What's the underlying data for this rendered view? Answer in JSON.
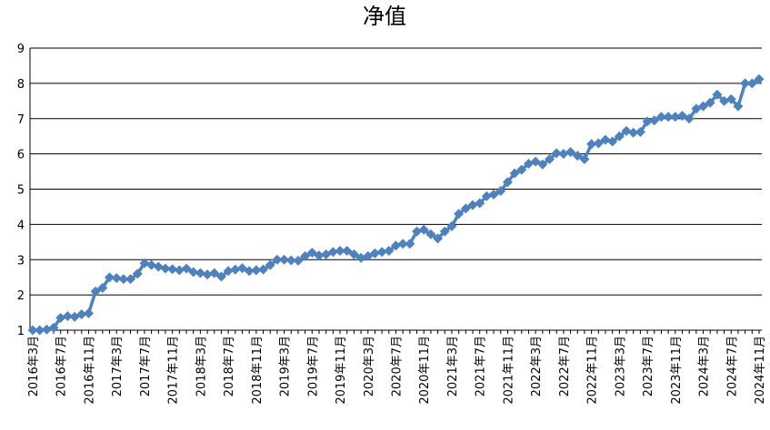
{
  "chart_data": {
    "type": "line",
    "title": "净值",
    "categories": [
      "2016年3月",
      null,
      null,
      null,
      "2016年7月",
      null,
      null,
      null,
      "2016年11月",
      null,
      null,
      null,
      "2017年3月",
      null,
      null,
      null,
      "2017年7月",
      null,
      null,
      null,
      "2017年11月",
      null,
      null,
      null,
      "2018年3月",
      null,
      null,
      null,
      "2018年7月",
      null,
      null,
      null,
      "2018年11月",
      null,
      null,
      null,
      "2019年3月",
      null,
      null,
      null,
      "2019年7月",
      null,
      null,
      null,
      "2019年11月",
      null,
      null,
      null,
      "2020年3月",
      null,
      null,
      null,
      "2020年7月",
      null,
      null,
      null,
      "2020年11月",
      null,
      null,
      null,
      "2021年3月",
      null,
      null,
      null,
      "2021年7月",
      null,
      null,
      null,
      "2021年11月",
      null,
      null,
      null,
      "2022年3月",
      null,
      null,
      null,
      "2022年7月",
      null,
      null,
      null,
      "2022年11月",
      null,
      null,
      null,
      "2023年3月",
      null,
      null,
      null,
      "2023年7月",
      null,
      null,
      null,
      "2023年11月",
      null,
      null,
      null,
      "2024年3月",
      null,
      null,
      null,
      "2024年7月",
      null,
      null,
      null,
      "2024年11月"
    ],
    "series": [
      {
        "name": "净值",
        "color": "#4f81bd",
        "values": [
          1.0,
          1.0,
          1.02,
          1.07,
          1.35,
          1.4,
          1.38,
          1.45,
          1.48,
          2.1,
          2.2,
          2.5,
          2.48,
          2.45,
          2.45,
          2.6,
          2.9,
          2.85,
          2.8,
          2.75,
          2.73,
          2.7,
          2.75,
          2.65,
          2.62,
          2.58,
          2.62,
          2.52,
          2.68,
          2.72,
          2.76,
          2.68,
          2.7,
          2.72,
          2.85,
          3.0,
          3.0,
          2.98,
          2.97,
          3.1,
          3.2,
          3.12,
          3.15,
          3.22,
          3.25,
          3.25,
          3.15,
          3.05,
          3.1,
          3.18,
          3.22,
          3.25,
          3.4,
          3.45,
          3.45,
          3.8,
          3.85,
          3.72,
          3.6,
          3.8,
          3.95,
          4.3,
          4.45,
          4.55,
          4.6,
          4.8,
          4.85,
          4.95,
          5.2,
          5.45,
          5.55,
          5.72,
          5.78,
          5.7,
          5.85,
          6.02,
          6.0,
          6.05,
          5.95,
          5.85,
          6.28,
          6.3,
          6.4,
          6.35,
          6.5,
          6.65,
          6.6,
          6.62,
          6.92,
          6.95,
          7.05,
          7.05,
          7.05,
          7.08,
          7.0,
          7.28,
          7.35,
          7.45,
          7.68,
          7.5,
          7.55,
          7.35,
          8.0,
          8.0,
          8.12
        ]
      }
    ],
    "ylim": [
      1,
      9
    ],
    "yticks": [
      1,
      2,
      3,
      4,
      5,
      6,
      7,
      8,
      9
    ],
    "grid": true
  }
}
